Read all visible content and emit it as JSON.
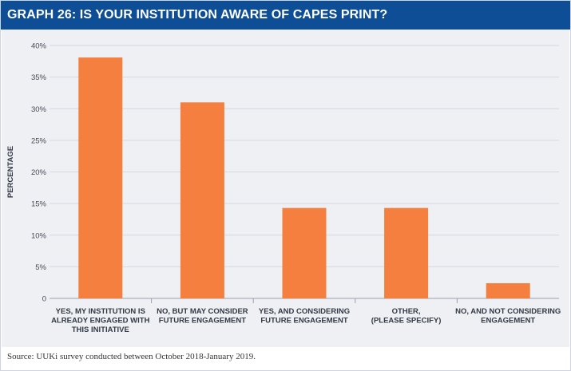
{
  "header": {
    "title": "GRAPH 26: IS YOUR INSTITUTION AWARE OF CAPES PRINT?"
  },
  "footer": {
    "source": "Source: UUKi survey conducted between October 2018-January 2019."
  },
  "colors": {
    "title_bg": "#0e4e96",
    "bar": "#f47f3e",
    "panel_bg": "#eef0f4",
    "grid": "#d4d8df"
  },
  "chart_data": {
    "type": "bar",
    "title": "GRAPH 26: IS YOUR INSTITUTION AWARE OF CAPES PRINT?",
    "xlabel": "",
    "ylabel": "PERCENTAGE",
    "ylim": [
      0,
      40
    ],
    "yticks": [
      0,
      5,
      10,
      15,
      20,
      25,
      30,
      35,
      40
    ],
    "ytick_labels": [
      "0",
      "5%",
      "10%",
      "15%",
      "20%",
      "25%",
      "30%",
      "35%",
      "40%"
    ],
    "grid": true,
    "categories": [
      [
        "YES, MY INSTITUTION IS",
        "ALREADY ENGAGED WITH",
        "THIS INITIATIVE"
      ],
      [
        "NO, BUT MAY CONSIDER",
        "FUTURE ENGAGEMENT"
      ],
      [
        "YES, AND CONSIDERING",
        "FUTURE ENGAGEMENT"
      ],
      [
        "OTHER,",
        "(PLEASE SPECIFY)"
      ],
      [
        "NO, AND NOT CONSIDERING",
        "ENGAGEMENT"
      ]
    ],
    "values": [
      38.1,
      31.0,
      14.3,
      14.3,
      2.4
    ]
  }
}
